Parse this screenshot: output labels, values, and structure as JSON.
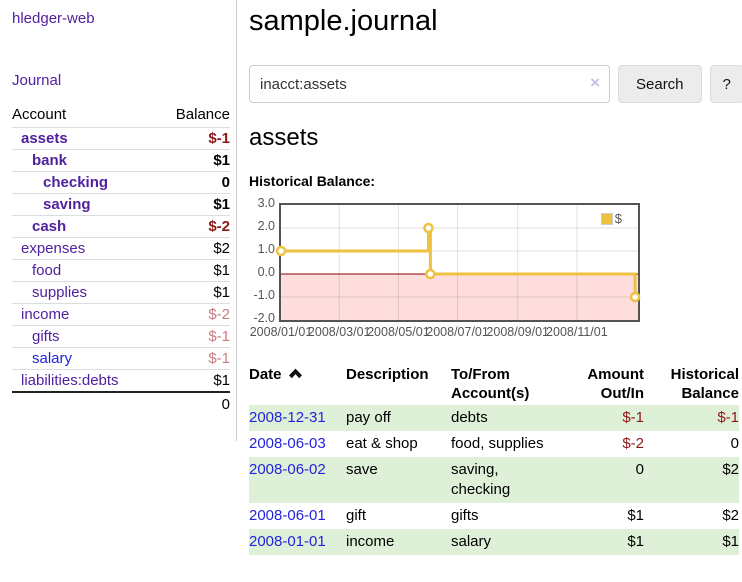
{
  "sidebar": {
    "brand": "hledger-web",
    "journal_link": "Journal",
    "accounts_header": {
      "account": "Account",
      "balance": "Balance"
    },
    "accounts": [
      {
        "name": "assets",
        "indent": 0,
        "bold": true,
        "link": "purple",
        "balance": "$-1",
        "balance_class": "neg"
      },
      {
        "name": "bank",
        "indent": 1,
        "bold": true,
        "link": "purple",
        "balance": "$1",
        "balance_class": ""
      },
      {
        "name": "checking",
        "indent": 2,
        "bold": true,
        "link": "purple",
        "balance": "0",
        "balance_class": ""
      },
      {
        "name": "saving",
        "indent": 2,
        "bold": true,
        "link": "purple",
        "balance": "$1",
        "balance_class": ""
      },
      {
        "name": "cash",
        "indent": 1,
        "bold": true,
        "link": "purple",
        "balance": "$-2",
        "balance_class": "neg"
      },
      {
        "name": "expenses",
        "indent": 0,
        "bold": false,
        "link": "purple",
        "balance": "$2",
        "balance_class": ""
      },
      {
        "name": "food",
        "indent": 1,
        "bold": false,
        "link": "purple",
        "balance": "$1",
        "balance_class": ""
      },
      {
        "name": "supplies",
        "indent": 1,
        "bold": false,
        "link": "purple",
        "balance": "$1",
        "balance_class": ""
      },
      {
        "name": "income",
        "indent": 0,
        "bold": false,
        "link": "purple",
        "balance": "$-2",
        "balance_class": "negl"
      },
      {
        "name": "gifts",
        "indent": 1,
        "bold": false,
        "link": "purple",
        "balance": "$-1",
        "balance_class": "negl"
      },
      {
        "name": "salary",
        "indent": 1,
        "bold": false,
        "link": "blue",
        "balance": "$-1",
        "balance_class": "negl"
      },
      {
        "name": "liabilities:debts",
        "indent": 0,
        "bold": false,
        "link": "purple",
        "balance": "$1",
        "balance_class": ""
      }
    ],
    "total": "0"
  },
  "main": {
    "title": "sample.journal",
    "search": {
      "value": "inacct:assets",
      "clear_icon": "×",
      "button": "Search",
      "help": "?"
    },
    "account_heading": "assets",
    "chart_label": "Historical Balance:"
  },
  "chart_data": {
    "type": "line",
    "title": "Historical Balance",
    "series": [
      {
        "name": "$",
        "color": "#edc240",
        "step": true,
        "x_dates": [
          "2008-01-01",
          "2008-06-01",
          "2008-06-03",
          "2008-12-31"
        ],
        "x_days": [
          0,
          152,
          154,
          365
        ],
        "values": [
          1,
          2,
          0,
          -1
        ]
      }
    ],
    "y_tick_labels": [
      "3.0",
      "2.0",
      "1.0",
      "0.0",
      "-1.0",
      "-2.0"
    ],
    "y_tick_values": [
      3,
      2,
      1,
      0,
      -1,
      -2
    ],
    "x_tick_labels": [
      "2008/01/01",
      "2008/03/01",
      "2008/05/01",
      "2008/07/01",
      "2008/09/01",
      "2008/11/01"
    ],
    "x_tick_days": [
      0,
      60,
      121,
      182,
      244,
      305
    ],
    "ylim": [
      -2,
      3
    ],
    "xlim_days": [
      0,
      368
    ],
    "grid": true,
    "legend": {
      "label": "$",
      "position": "top-right"
    },
    "negative_region_color": "#ffdddd",
    "zero_line_color": "#8b0000",
    "marker_fill": "#ffffff"
  },
  "register": {
    "headers": {
      "date": "Date",
      "description": "Description",
      "to_from": "To/From\nAccount(s)",
      "amount": "Amount\nOut/In",
      "balance": "Historical\nBalance"
    },
    "rows": [
      {
        "date": "2008-12-31",
        "description": "pay off",
        "to_from": "debts",
        "amount": "$-1",
        "amount_neg": true,
        "balance": "$-1",
        "balance_neg": true
      },
      {
        "date": "2008-06-03",
        "description": "eat & shop",
        "to_from": "food, supplies",
        "amount": "$-2",
        "amount_neg": true,
        "balance": "0",
        "balance_neg": false
      },
      {
        "date": "2008-06-02",
        "description": "save",
        "to_from": "saving,\nchecking",
        "amount": "0",
        "amount_neg": false,
        "balance": "$2",
        "balance_neg": false
      },
      {
        "date": "2008-06-01",
        "description": "gift",
        "to_from": "gifts",
        "amount": "$1",
        "amount_neg": false,
        "balance": "$2",
        "balance_neg": false
      },
      {
        "date": "2008-01-01",
        "description": "income",
        "to_from": "salary",
        "amount": "$1",
        "amount_neg": false,
        "balance": "$1",
        "balance_neg": false
      }
    ]
  },
  "colors": {
    "link_purple": "#52219e",
    "link_blue": "#2323dd",
    "negative_strong": "#8e1818",
    "negative_light": "#c97a7f",
    "row_green": "#dff0d8",
    "series_gold": "#edc240",
    "chart_negative_region": "#ffdddd",
    "chart_zero_line": "#8b0000",
    "chart_frame": "#545454"
  }
}
